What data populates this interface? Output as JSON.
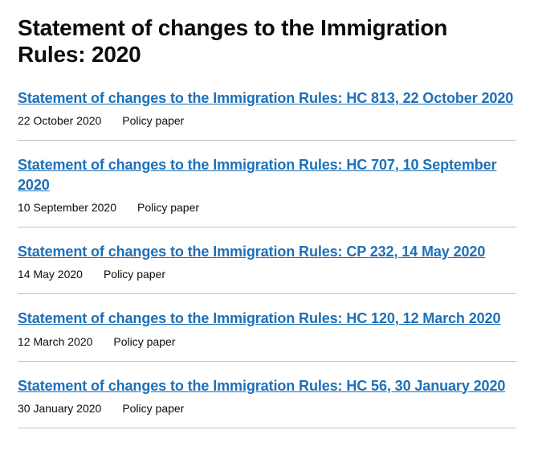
{
  "page": {
    "title": "Statement of changes to the Immigration Rules: 2020"
  },
  "link_color": "#1d70b8",
  "text_color": "#0b0c0c",
  "divider_color": "#bfc1c3",
  "documents": [
    {
      "title": "Statement of changes to the Immigration Rules: HC 813, 22 October 2020",
      "date": "22 October 2020",
      "type": "Policy paper"
    },
    {
      "title": "Statement of changes to the Immigration Rules: HC 707, 10 September 2020",
      "date": "10 September 2020",
      "type": "Policy paper"
    },
    {
      "title": "Statement of changes to the Immigration Rules: CP 232, 14 May 2020",
      "date": "14 May 2020",
      "type": "Policy paper"
    },
    {
      "title": "Statement of changes to the Immigration Rules: HC 120, 12 March 2020",
      "date": "12 March 2020",
      "type": "Policy paper"
    },
    {
      "title": "Statement of changes to the Immigration Rules: HC 56, 30 January 2020",
      "date": "30 January 2020",
      "type": "Policy paper"
    }
  ]
}
